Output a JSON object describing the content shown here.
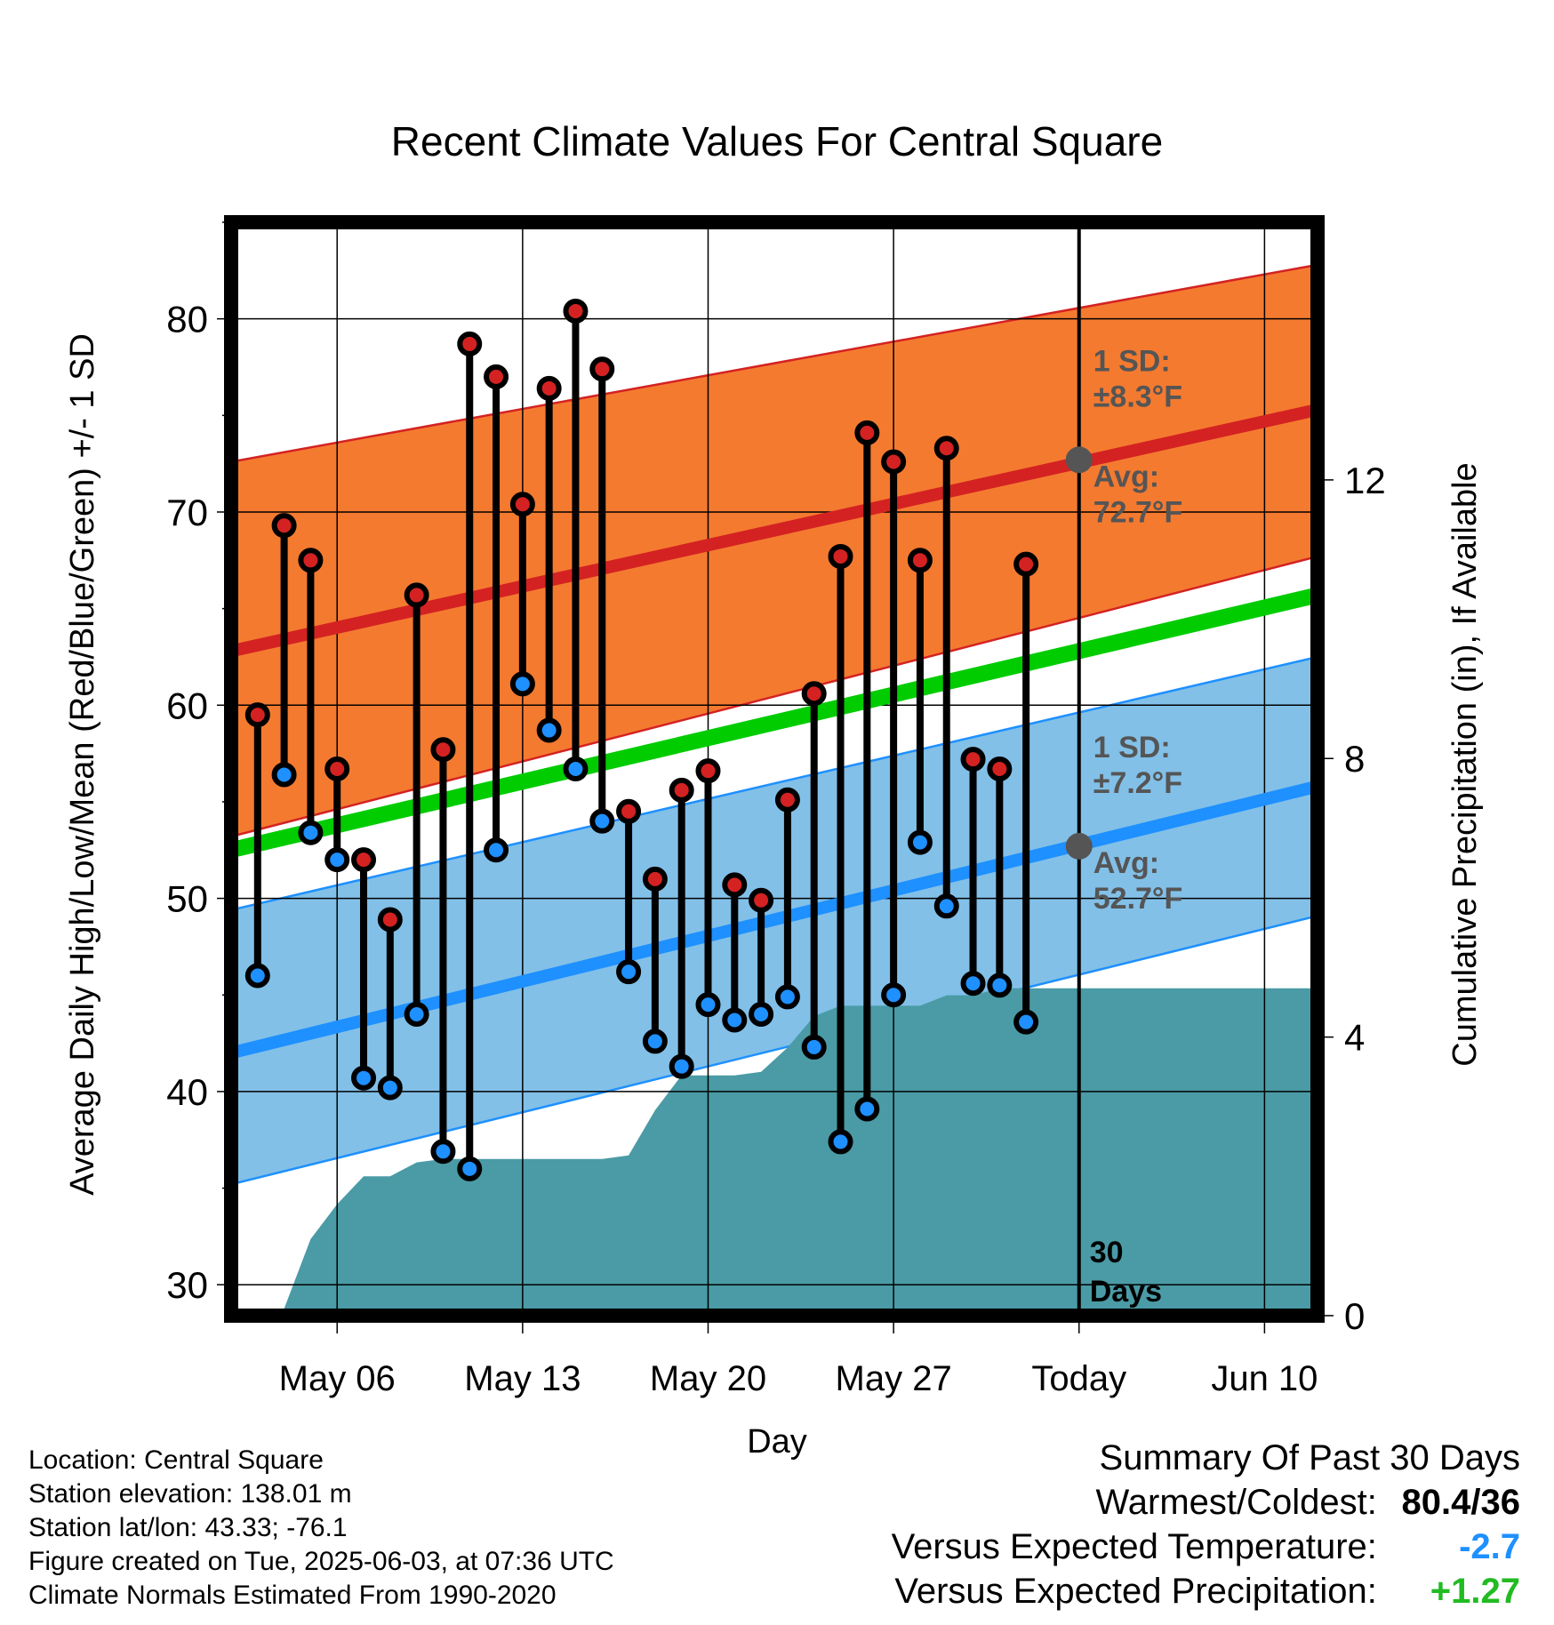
{
  "chart_data": {
    "type": "line",
    "title": "Recent Climate Values For Central Square",
    "xlabel": "Day",
    "ylabel": "Average Daily High/Low/Mean (Red/Blue/Green) +/- 1 SD",
    "y2label": "Cumulative Precipitation (in), If Available",
    "ylim": [
      28.4,
      85
    ],
    "y2lim": [
      0,
      15.7
    ],
    "yticks": [
      30,
      40,
      50,
      60,
      70,
      80
    ],
    "y2ticks": [
      0,
      4,
      8,
      12
    ],
    "x_dates": [
      "May 03",
      "May 04",
      "May 05",
      "May 06",
      "May 07",
      "May 08",
      "May 09",
      "May 10",
      "May 11",
      "May 12",
      "May 13",
      "May 14",
      "May 15",
      "May 16",
      "May 17",
      "May 18",
      "May 19",
      "May 20",
      "May 21",
      "May 22",
      "May 23",
      "May 24",
      "May 25",
      "May 26",
      "May 27",
      "May 28",
      "May 29",
      "May 30",
      "May 31",
      "Jun 01",
      "Jun 02"
    ],
    "xlim": [
      "May 02",
      "Jun 12"
    ],
    "xticks": [
      {
        "date": "May 06",
        "label": "May 06"
      },
      {
        "date": "May 13",
        "label": "May 13"
      },
      {
        "date": "May 20",
        "label": "May 20"
      },
      {
        "date": "May 27",
        "label": "May 27"
      },
      {
        "date": "Jun 03",
        "label": "Today"
      },
      {
        "date": "Jun 10",
        "label": "Jun 10"
      }
    ],
    "today": "Jun 03",
    "grid": true,
    "series": [
      {
        "name": "High",
        "color": "#d42222",
        "values": [
          59.5,
          69.3,
          67.5,
          56.7,
          52.0,
          48.9,
          65.7,
          57.7,
          78.7,
          77.0,
          70.4,
          76.4,
          80.4,
          77.4,
          54.5,
          51.0,
          55.6,
          56.6,
          50.7,
          49.9,
          55.1,
          60.6,
          67.7,
          74.1,
          72.6,
          67.5,
          73.3,
          57.2,
          56.7,
          67.3
        ]
      },
      {
        "name": "Low",
        "color": "#1e90ff",
        "values": [
          46.0,
          56.4,
          53.4,
          52.0,
          40.7,
          40.2,
          44.0,
          36.9,
          36.0,
          52.5,
          61.1,
          58.7,
          56.7,
          54.0,
          46.2,
          42.6,
          41.3,
          44.5,
          43.7,
          44.0,
          44.9,
          42.3,
          37.4,
          39.1,
          45.0,
          52.9,
          49.6,
          45.6,
          45.5,
          43.6
        ]
      }
    ],
    "normals": {
      "high_avg": {
        "color": "#d42222",
        "start": 62.8,
        "end": 75.3
      },
      "high_band": {
        "color": "#f47a30",
        "start_low": 53.2,
        "start_high": 72.6,
        "end_low": 67.7,
        "end_high": 82.8
      },
      "low_avg": {
        "color": "#1e90ff",
        "start": 42.0,
        "end": 55.8
      },
      "low_band": {
        "color": "#82c0e8",
        "start_low": 35.2,
        "start_high": 49.4,
        "end_low": 49.1,
        "end_high": 62.5
      },
      "mean": {
        "color": "#00cc00",
        "start": 52.5,
        "end": 65.7
      }
    },
    "precipitation": {
      "color": "#4a9ba6",
      "dates": [
        "May 02",
        "May 03",
        "May 04",
        "May 05",
        "May 06",
        "May 07",
        "May 08",
        "May 09",
        "May 10",
        "May 11",
        "May 12",
        "May 13",
        "May 14",
        "May 15",
        "May 16",
        "May 17",
        "May 18",
        "May 19",
        "May 20",
        "May 21",
        "May 22",
        "May 23",
        "May 24",
        "May 25",
        "May 26",
        "May 27",
        "May 28",
        "May 29",
        "May 30",
        "May 31",
        "Jun 01",
        "Jun 02",
        "Jun 12"
      ],
      "values": [
        0,
        0,
        0.1,
        1.1,
        1.6,
        2.0,
        2.0,
        2.2,
        2.25,
        2.25,
        2.25,
        2.25,
        2.25,
        2.25,
        2.25,
        2.3,
        2.95,
        3.45,
        3.45,
        3.45,
        3.5,
        3.85,
        4.3,
        4.45,
        4.45,
        4.45,
        4.45,
        4.6,
        4.6,
        4.7,
        4.7,
        4.7,
        4.7
      ]
    },
    "annotations": {
      "high_sd_title": "1 SD:",
      "high_sd_value": "±8.3°F",
      "high_avg_title": "Avg:",
      "high_avg_value": "72.7°F",
      "high_avg_today": 72.7,
      "low_sd_title": "1 SD:",
      "low_sd_value": "±7.2°F",
      "low_avg_title": "Avg:",
      "low_avg_value": "52.7°F",
      "low_avg_today": 52.7,
      "days_line1": "30",
      "days_line2": "Days"
    }
  },
  "info": {
    "location": "Location: Central Square",
    "elevation": "Station elevation: 138.01 m",
    "latlon": "Station lat/lon: 43.33; -76.1",
    "created": "Figure created on Tue, 2025-06-03, at 07:36 UTC",
    "normals": "Climate Normals Estimated From 1990-2020"
  },
  "summary": {
    "title": "Summary Of Past 30 Days",
    "warmest_label": "Warmest/Coldest:",
    "warmest_value": "80.4/36",
    "temp_label": "Versus Expected Temperature:",
    "temp_value": "-2.7",
    "temp_color": "#1e90ff",
    "precip_label": "Versus Expected Precipitation:",
    "precip_value": "+1.27",
    "precip_color": "#22bb22"
  }
}
